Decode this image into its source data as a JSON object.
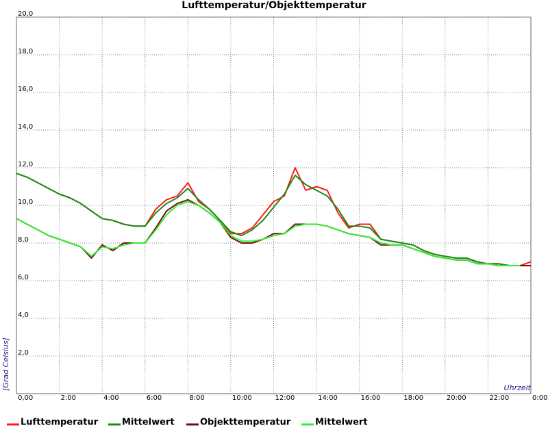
{
  "chart_data": {
    "type": "line",
    "title": "Lufttemperatur/Objekttemperatur",
    "x_label": "Uhrzeit",
    "y_label": "[Grad Celsius]",
    "x": [
      0,
      0.5,
      1,
      1.5,
      2,
      2.5,
      3,
      3.5,
      4,
      4.5,
      5,
      5.5,
      6,
      6.5,
      7,
      7.5,
      8,
      8.5,
      9,
      9.5,
      10,
      10.5,
      11,
      11.5,
      12,
      12.5,
      13,
      13.5,
      14,
      14.5,
      15,
      15.5,
      16,
      16.5,
      17,
      17.5,
      18,
      18.5,
      19,
      19.5,
      20,
      20.5,
      21,
      21.5,
      22,
      22.5,
      23,
      23.5,
      24
    ],
    "series": [
      {
        "name": "Lufttemperatur",
        "color": "#ff1a1a",
        "values": [
          11.7,
          11.5,
          11.2,
          10.9,
          10.6,
          10.4,
          10.1,
          9.7,
          9.3,
          9.2,
          9.0,
          8.9,
          8.9,
          9.8,
          10.3,
          10.5,
          11.2,
          10.2,
          9.8,
          9.2,
          8.5,
          8.5,
          8.8,
          9.5,
          10.2,
          10.5,
          12.0,
          10.8,
          11.0,
          10.8,
          9.6,
          8.8,
          9.0,
          9.0,
          8.2,
          8.1,
          8.0,
          7.9,
          7.6,
          7.4,
          7.3,
          7.2,
          7.2,
          7.0,
          6.9,
          6.9,
          6.8,
          6.8,
          7.0
        ]
      },
      {
        "name": "Mittelwert",
        "color": "#1a8c1a",
        "values": [
          11.7,
          11.5,
          11.2,
          10.9,
          10.6,
          10.4,
          10.1,
          9.7,
          9.3,
          9.2,
          9.0,
          8.9,
          8.9,
          9.6,
          10.1,
          10.4,
          10.9,
          10.3,
          9.8,
          9.2,
          8.6,
          8.4,
          8.7,
          9.2,
          9.9,
          10.6,
          11.6,
          11.1,
          10.8,
          10.5,
          9.8,
          8.9,
          8.9,
          8.8,
          8.2,
          8.1,
          8.0,
          7.9,
          7.6,
          7.4,
          7.3,
          7.2,
          7.2,
          7.0,
          6.9,
          6.9,
          6.8,
          6.8,
          null
        ]
      },
      {
        "name": "Objekttemperatur",
        "color": "#7a0a0a",
        "values": [
          9.3,
          9.0,
          8.7,
          8.4,
          8.2,
          8.0,
          7.8,
          7.2,
          7.9,
          7.6,
          8.0,
          8.0,
          8.0,
          8.8,
          9.7,
          10.1,
          10.3,
          10.0,
          9.6,
          9.1,
          8.3,
          8.0,
          8.0,
          8.2,
          8.5,
          8.5,
          9.0,
          9.0,
          9.0,
          8.9,
          8.7,
          8.5,
          8.4,
          8.3,
          7.9,
          7.9,
          7.9,
          7.7,
          7.5,
          7.3,
          7.2,
          7.1,
          7.1,
          6.9,
          6.9,
          6.8,
          6.8,
          6.8,
          6.8
        ]
      },
      {
        "name": "Mittelwert",
        "color": "#33ee33",
        "values": [
          9.3,
          9.0,
          8.7,
          8.4,
          8.2,
          8.0,
          7.8,
          7.3,
          7.8,
          7.7,
          7.9,
          8.0,
          8.0,
          8.7,
          9.5,
          10.0,
          10.2,
          10.0,
          9.6,
          9.1,
          8.4,
          8.1,
          8.1,
          8.2,
          8.4,
          8.5,
          8.9,
          9.0,
          9.0,
          8.9,
          8.7,
          8.5,
          8.4,
          8.3,
          8.0,
          7.9,
          7.9,
          7.7,
          7.5,
          7.3,
          7.2,
          7.1,
          7.1,
          6.9,
          6.9,
          6.8,
          6.8,
          6.8,
          null
        ]
      }
    ],
    "xlim": [
      0,
      24
    ],
    "xticks": [
      {
        "value": 0,
        "label": "0,00"
      },
      {
        "value": 2,
        "label": "2:00"
      },
      {
        "value": 4,
        "label": "4:00"
      },
      {
        "value": 6,
        "label": "6:00"
      },
      {
        "value": 8,
        "label": "8:00"
      },
      {
        "value": 10,
        "label": "10:00"
      },
      {
        "value": 12,
        "label": "12:00"
      },
      {
        "value": 14,
        "label": "14:00"
      },
      {
        "value": 16,
        "label": "16:00"
      },
      {
        "value": 18,
        "label": "18:00"
      },
      {
        "value": 20,
        "label": "20:00"
      },
      {
        "value": 22,
        "label": "22:00"
      },
      {
        "value": 24,
        "label": "0:00"
      }
    ],
    "ylim": [
      0,
      20
    ],
    "yticks": [
      {
        "value": 2,
        "label": "2,0"
      },
      {
        "value": 4,
        "label": "4,0"
      },
      {
        "value": 6,
        "label": "6,0"
      },
      {
        "value": 8,
        "label": "8,0"
      },
      {
        "value": 10,
        "label": "10,0"
      },
      {
        "value": 12,
        "label": "12,0"
      },
      {
        "value": 14,
        "label": "14,0"
      },
      {
        "value": 16,
        "label": "16,0"
      },
      {
        "value": 18,
        "label": "18,0"
      },
      {
        "value": 20,
        "label": "20,0"
      }
    ],
    "grid": true
  }
}
